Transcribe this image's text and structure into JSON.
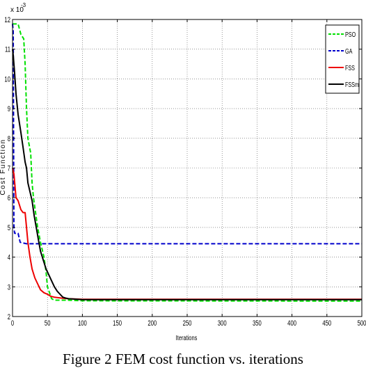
{
  "caption": "Figure 2 FEM cost function vs. iterations",
  "chart_data": {
    "type": "line",
    "title": "",
    "xlabel": "Iterations",
    "ylabel": "Cost Function",
    "y_multiplier": "x 10",
    "y_exponent": "-3",
    "xlim": [
      0,
      500
    ],
    "ylim": [
      2,
      12
    ],
    "x_ticks": [
      0,
      50,
      100,
      150,
      200,
      250,
      300,
      350,
      400,
      450,
      500
    ],
    "y_ticks": [
      2,
      3,
      4,
      5,
      6,
      7,
      8,
      9,
      10,
      11,
      12
    ],
    "grid": true,
    "legend_position": "top-right",
    "series": [
      {
        "name": "PSO",
        "color": "#00e000",
        "dash": true,
        "points": [
          [
            0,
            11.85
          ],
          [
            2,
            11.85
          ],
          [
            5,
            11.85
          ],
          [
            8,
            11.85
          ],
          [
            12,
            11.5
          ],
          [
            16,
            11.35
          ],
          [
            18,
            10.5
          ],
          [
            20,
            9.0
          ],
          [
            22,
            8.0
          ],
          [
            26,
            7.5
          ],
          [
            28,
            6.5
          ],
          [
            30,
            6.0
          ],
          [
            33,
            5.5
          ],
          [
            36,
            5.0
          ],
          [
            40,
            4.5
          ],
          [
            45,
            4.0
          ],
          [
            48,
            3.5
          ],
          [
            50,
            3.0
          ],
          [
            53,
            2.8
          ],
          [
            56,
            2.6
          ],
          [
            60,
            2.55
          ],
          [
            80,
            2.55
          ],
          [
            100,
            2.53
          ],
          [
            500,
            2.52
          ]
        ]
      },
      {
        "name": "GA",
        "color": "#0000cc",
        "dash": true,
        "points": [
          [
            0,
            11.85
          ],
          [
            1,
            11.6
          ],
          [
            2,
            5.0
          ],
          [
            3,
            4.8
          ],
          [
            8,
            4.8
          ],
          [
            11,
            4.5
          ],
          [
            20,
            4.45
          ],
          [
            500,
            4.45
          ]
        ]
      },
      {
        "name": "FSS",
        "color": "#ee0000",
        "dash": false,
        "points": [
          [
            0,
            7.0
          ],
          [
            2,
            6.8
          ],
          [
            5,
            6.0
          ],
          [
            8,
            5.9
          ],
          [
            12,
            5.6
          ],
          [
            15,
            5.5
          ],
          [
            18,
            5.5
          ],
          [
            20,
            5.0
          ],
          [
            22,
            4.5
          ],
          [
            25,
            4.0
          ],
          [
            28,
            3.6
          ],
          [
            32,
            3.3
          ],
          [
            36,
            3.1
          ],
          [
            40,
            2.9
          ],
          [
            45,
            2.8
          ],
          [
            50,
            2.75
          ],
          [
            55,
            2.68
          ],
          [
            60,
            2.65
          ],
          [
            70,
            2.62
          ],
          [
            80,
            2.6
          ],
          [
            100,
            2.58
          ],
          [
            500,
            2.58
          ]
        ]
      },
      {
        "name": "FSSm",
        "color": "#000000",
        "dash": false,
        "points": [
          [
            0,
            11.0
          ],
          [
            1,
            10.8
          ],
          [
            3,
            10.2
          ],
          [
            5,
            9.5
          ],
          [
            8,
            8.8
          ],
          [
            12,
            8.2
          ],
          [
            15,
            7.7
          ],
          [
            18,
            7.2
          ],
          [
            20,
            7.0
          ],
          [
            22,
            6.5
          ],
          [
            25,
            6.2
          ],
          [
            28,
            5.9
          ],
          [
            31,
            5.4
          ],
          [
            34,
            5.0
          ],
          [
            37,
            4.6
          ],
          [
            40,
            4.2
          ],
          [
            44,
            3.9
          ],
          [
            48,
            3.6
          ],
          [
            52,
            3.4
          ],
          [
            56,
            3.2
          ],
          [
            60,
            3.0
          ],
          [
            64,
            2.85
          ],
          [
            68,
            2.75
          ],
          [
            72,
            2.65
          ],
          [
            76,
            2.62
          ],
          [
            80,
            2.6
          ],
          [
            100,
            2.57
          ],
          [
            500,
            2.57
          ]
        ]
      }
    ]
  }
}
